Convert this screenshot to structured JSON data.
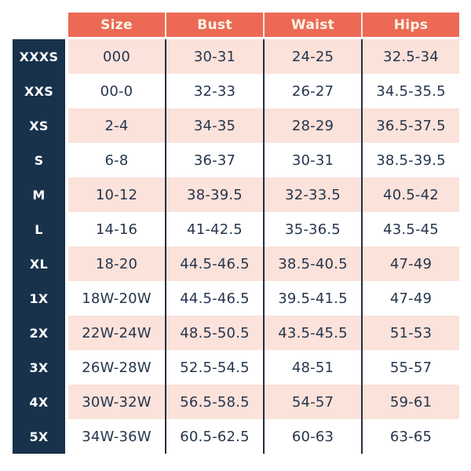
{
  "chart_data": {
    "type": "table",
    "columns": [
      "Size",
      "Bust",
      "Waist",
      "Hips"
    ],
    "rows": [
      {
        "label": "XXXS",
        "cells": [
          "000",
          "30-31",
          "24-25",
          "32.5-34"
        ]
      },
      {
        "label": "XXS",
        "cells": [
          "00-0",
          "32-33",
          "26-27",
          "34.5-35.5"
        ]
      },
      {
        "label": "XS",
        "cells": [
          "2-4",
          "34-35",
          "28-29",
          "36.5-37.5"
        ]
      },
      {
        "label": "S",
        "cells": [
          "6-8",
          "36-37",
          "30-31",
          "38.5-39.5"
        ]
      },
      {
        "label": "M",
        "cells": [
          "10-12",
          "38-39.5",
          "32-33.5",
          "40.5-42"
        ]
      },
      {
        "label": "L",
        "cells": [
          "14-16",
          "41-42.5",
          "35-36.5",
          "43.5-45"
        ]
      },
      {
        "label": "XL",
        "cells": [
          "18-20",
          "44.5-46.5",
          "38.5-40.5",
          "47-49"
        ]
      },
      {
        "label": "1X",
        "cells": [
          "18W-20W",
          "44.5-46.5",
          "39.5-41.5",
          "47-49"
        ]
      },
      {
        "label": "2X",
        "cells": [
          "22W-24W",
          "48.5-50.5",
          "43.5-45.5",
          "51-53"
        ]
      },
      {
        "label": "3X",
        "cells": [
          "26W-28W",
          "52.5-54.5",
          "48-51",
          "55-57"
        ]
      },
      {
        "label": "4X",
        "cells": [
          "30W-32W",
          "56.5-58.5",
          "54-57",
          "59-61"
        ]
      },
      {
        "label": "5X",
        "cells": [
          "34W-36W",
          "60.5-62.5",
          "60-63",
          "63-65"
        ]
      }
    ],
    "layout": {
      "grid": false,
      "striped": true,
      "stripe_note": "1st, 3rd, 5th... data rows pink; others white; thin dark vertical dividers between data columns"
    }
  },
  "colors": {
    "header_bg": "#EC6A55",
    "header_text": "#FAF4E8",
    "header_divider": "#F4EBDD",
    "label_column_bg": "#18324C",
    "label_text": "#FFFFFF",
    "stripe_row_bg": "#FBE2DA",
    "plain_row_bg": "#FFFFFF",
    "cell_text": "#26364E",
    "column_divider": "#232F41"
  }
}
